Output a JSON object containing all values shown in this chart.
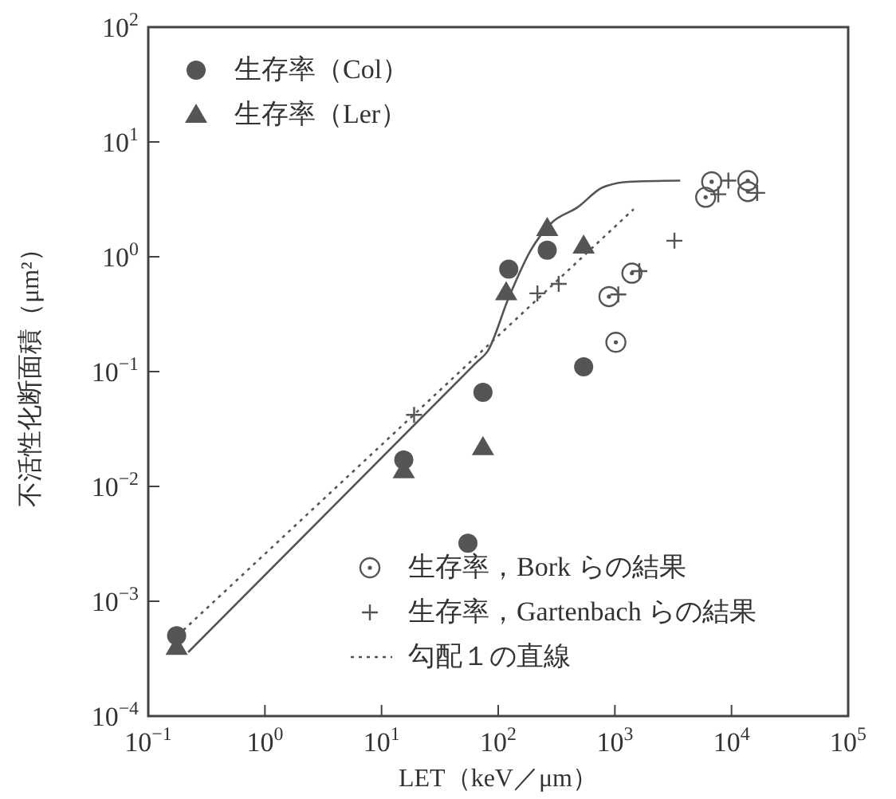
{
  "chart_data": {
    "type": "scatter",
    "xlabel": "LET（keV／μm）",
    "ylabel": "不活性化断面積（μm²）",
    "log": "xy",
    "grid": false,
    "legend": "top left",
    "xlim": [
      0.1,
      100000
    ],
    "ylim": [
      0.0001,
      100
    ],
    "xticks": [
      {
        "value": 0.1,
        "label": "10$^{−1}$"
      },
      {
        "value": 1,
        "label": "10$^{0}$"
      },
      {
        "value": 10,
        "label": "10$^{1}$"
      },
      {
        "value": 100,
        "label": "10$^{2}$"
      },
      {
        "value": 1000,
        "label": "10$^{3}$"
      },
      {
        "value": 10000,
        "label": "10$^{4}$"
      },
      {
        "value": 100000,
        "label": "10$^{5}$"
      }
    ],
    "yticks": [
      {
        "value": 0.0001,
        "label": "10$^{−4}$"
      },
      {
        "value": 0.001,
        "label": "10$^{−3}$"
      },
      {
        "value": 0.01,
        "label": "10$^{−2}$"
      },
      {
        "value": 0.1,
        "label": "10$^{−1}$"
      },
      {
        "value": 1,
        "label": "10$^{0}$"
      },
      {
        "value": 10,
        "label": "10$^{1}$"
      },
      {
        "value": 100,
        "label": "10$^{2}$"
      }
    ],
    "series": [
      {
        "name": "生存率（Col）",
        "marker": "circle",
        "color": "#555555",
        "x": [
          0.175,
          15.5,
          55,
          74,
          123,
          263,
          540
        ],
        "values": [
          0.0005,
          0.017,
          0.0032,
          0.066,
          0.78,
          1.14,
          0.11
        ]
      },
      {
        "name": "生存率（Ler）",
        "marker": "triangle",
        "color": "#555555",
        "x": [
          0.175,
          15.5,
          74,
          117,
          263,
          540
        ],
        "values": [
          0.0004,
          0.0138,
          0.022,
          0.49,
          1.78,
          1.25
        ]
      },
      {
        "name": "生存率，Bork らの結果",
        "marker": "circle-dot",
        "color": "#555555",
        "x": [
          890,
          1020,
          1400,
          6000,
          6760,
          13800,
          13800
        ],
        "values": [
          0.45,
          0.18,
          0.72,
          3.3,
          4.5,
          4.6,
          3.7
        ]
      },
      {
        "name": "生存率，Gartenbach らの結果",
        "marker": "cross",
        "color": "#555555",
        "x": [
          19,
          217,
          330,
          1070,
          1620,
          3240,
          7700,
          9400,
          16600
        ],
        "values": [
          0.042,
          0.48,
          0.58,
          0.47,
          0.75,
          1.38,
          3.5,
          4.6,
          3.6
        ]
      },
      {
        "name": "勾配１の直線",
        "type": "line",
        "line_style": "dotted",
        "color": "#555555",
        "x": [
          0.2,
          1450
        ],
        "values": [
          0.00056,
          2.6
        ]
      },
      {
        "type": "line",
        "line_style": "solid",
        "color": "#555555",
        "x": [
          0.22,
          65,
          81,
          123,
          190,
          283,
          480,
          780,
          1320,
          3630
        ],
        "values": [
          0.00036,
          0.12,
          0.15,
          0.44,
          1.14,
          1.95,
          2.7,
          4.0,
          4.5,
          4.6
        ]
      }
    ]
  }
}
